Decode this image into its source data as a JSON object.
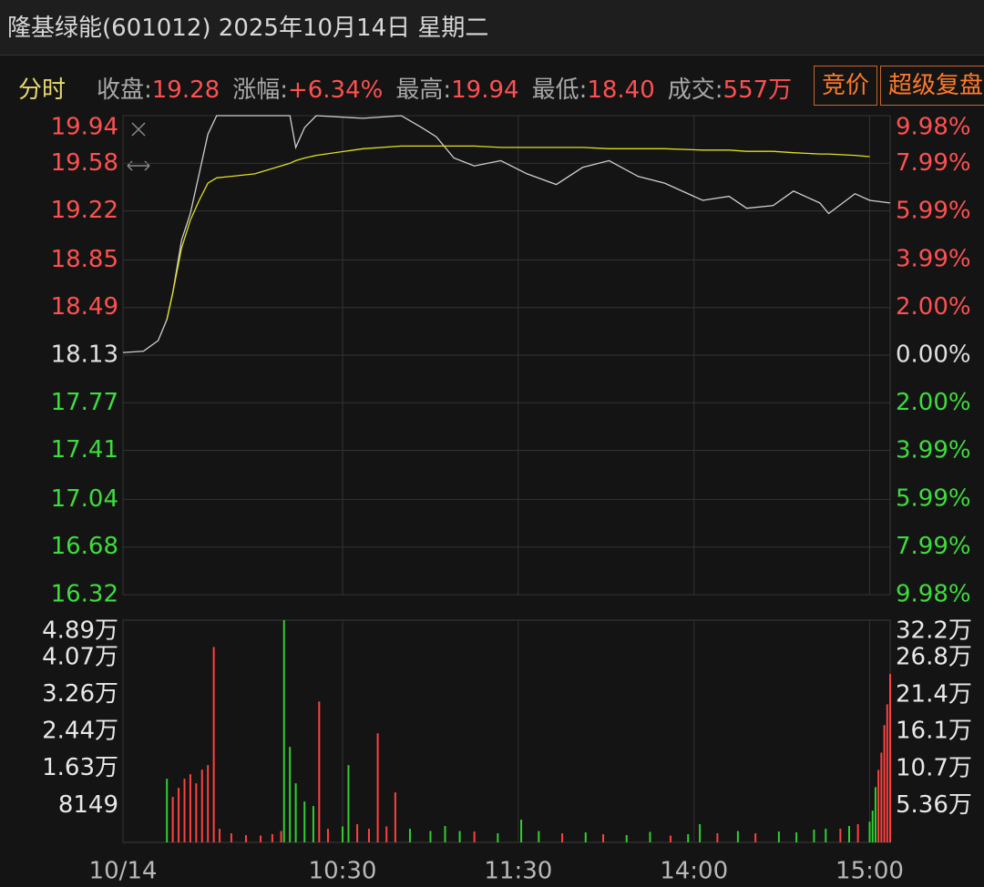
{
  "header": {
    "title": "隆基绿能(601012) 2025年10月14日 星期二"
  },
  "toolbar": {
    "mode": "分时",
    "stats": [
      {
        "label": "收盘:",
        "value": "19.28"
      },
      {
        "label": "涨幅:",
        "value": "+6.34%"
      },
      {
        "label": "最高:",
        "value": "19.94"
      },
      {
        "label": "最低:",
        "value": "18.40"
      },
      {
        "label": "成交:",
        "value": "557万"
      }
    ],
    "buttons": [
      "竞价",
      "超级复盘"
    ]
  },
  "chart_data": [
    {
      "type": "line",
      "xlim": [
        0,
        262
      ],
      "x": [
        0,
        7,
        12,
        15,
        17,
        20,
        23,
        26,
        29,
        32,
        45,
        57,
        59,
        62,
        66,
        82,
        95,
        102,
        107,
        113,
        120,
        129,
        138,
        148,
        157,
        166,
        176,
        185,
        198,
        207,
        213,
        222,
        229,
        238,
        241,
        250,
        255,
        262
      ],
      "ylim": [
        16.32,
        19.94
      ],
      "yticks": [
        19.94,
        19.58,
        19.22,
        18.85,
        18.49,
        18.13,
        17.77,
        17.41,
        17.04,
        16.68,
        16.32
      ],
      "y2lim": [
        -9.98,
        9.98
      ],
      "y2ticks": [
        {
          "value": 9.98,
          "label": "9.98%"
        },
        {
          "value": 7.99,
          "label": "7.99%"
        },
        {
          "value": 5.99,
          "label": "5.99%"
        },
        {
          "value": 3.99,
          "label": "3.99%"
        },
        {
          "value": 2.0,
          "label": "2.00%"
        },
        {
          "value": 0,
          "label": "0.00%"
        },
        {
          "value": -2.0,
          "label": "2.00%"
        },
        {
          "value": -3.99,
          "label": "3.99%"
        },
        {
          "value": -5.99,
          "label": "5.99%"
        },
        {
          "value": -7.99,
          "label": "7.99%"
        },
        {
          "value": -9.98,
          "label": "9.98%"
        }
      ],
      "grid": true,
      "tick_colors": {
        "up": "#ff5050",
        "flat": "#e0e0e0",
        "down": "#3ddc3d"
      },
      "series": [
        {
          "color": "#d0d0d0",
          "values": [
            18.15,
            18.16,
            18.24,
            18.4,
            18.6,
            19.0,
            19.2,
            19.5,
            19.8,
            19.94,
            19.94,
            19.94,
            19.7,
            19.85,
            19.94,
            19.92,
            19.94,
            19.85,
            19.78,
            19.62,
            19.56,
            19.6,
            19.5,
            19.42,
            19.55,
            19.6,
            19.48,
            19.43,
            19.3,
            19.33,
            19.24,
            19.26,
            19.37,
            19.28,
            19.2,
            19.35,
            19.3,
            19.28
          ]
        },
        {
          "color": "#e0e020",
          "values": [
            null,
            null,
            null,
            18.4,
            18.6,
            18.94,
            19.15,
            19.3,
            19.43,
            19.47,
            19.5,
            19.58,
            19.6,
            19.62,
            19.64,
            19.69,
            19.71,
            19.71,
            19.71,
            19.71,
            19.71,
            19.7,
            19.7,
            19.7,
            19.7,
            19.69,
            19.69,
            19.69,
            19.68,
            19.68,
            19.67,
            19.67,
            19.66,
            19.65,
            19.65,
            19.64,
            19.63,
            null
          ]
        }
      ]
    },
    {
      "type": "bar",
      "xlim": [
        0,
        262
      ],
      "xticks": [
        {
          "value": 0,
          "label": "10/14"
        },
        {
          "value": 75,
          "label": "10:30"
        },
        {
          "value": 135,
          "label": "11:30"
        },
        {
          "value": 195,
          "label": "14:00"
        },
        {
          "value": 255,
          "label": "15:00"
        }
      ],
      "ylim": [
        0,
        48900
      ],
      "yticks": [
        {
          "value": 48900,
          "label": "4.89万"
        },
        {
          "value": 40700,
          "label": "4.07万"
        },
        {
          "value": 32600,
          "label": "3.26万"
        },
        {
          "value": 24400,
          "label": "2.44万"
        },
        {
          "value": 16300,
          "label": "1.63万"
        },
        8149
      ],
      "y2lim": [
        0,
        322000
      ],
      "y2ticks": [
        {
          "value": 322000,
          "label": "32.2万"
        },
        {
          "value": 268000,
          "label": "26.8万"
        },
        {
          "value": 214000,
          "label": "21.4万"
        },
        {
          "value": 161000,
          "label": "16.1万"
        },
        {
          "value": 107000,
          "label": "10.7万"
        },
        {
          "value": 53600,
          "label": "5.36万"
        }
      ],
      "series": [
        {
          "x": [
            15,
            17,
            19,
            21,
            23,
            25,
            27,
            29,
            31,
            33,
            37,
            42,
            47,
            51,
            54,
            55,
            57,
            59,
            62,
            65,
            67,
            70,
            75,
            77,
            80,
            84,
            87,
            90,
            93,
            98,
            105,
            110,
            115,
            120,
            128,
            136,
            142,
            150,
            158,
            164,
            172,
            180,
            187,
            193,
            197,
            203,
            210,
            216,
            224,
            230,
            236,
            240,
            245,
            248,
            251
          ],
          "values": [
            14000,
            10000,
            12000,
            14000,
            15000,
            13000,
            16000,
            17000,
            43000,
            3000,
            2000,
            1600,
            1500,
            1800,
            2500,
            48900,
            21000,
            13000,
            9000,
            8000,
            31000,
            3000,
            3500,
            17000,
            4000,
            3000,
            24000,
            3500,
            11000,
            3000,
            2500,
            3600,
            2500,
            2400,
            2000,
            5000,
            2500,
            2000,
            2200,
            1800,
            1600,
            2300,
            1500,
            1800,
            4000,
            2000,
            2500,
            2000,
            2400,
            2200,
            2800,
            3000,
            3000,
            3600,
            4000
          ],
          "colors": [
            "#2fd02f",
            "#ff4040",
            "#ff4040",
            "#ff4040",
            "#ff4040",
            "#ff4040",
            "#ff4040",
            "#ff4040",
            "#ff4040",
            "#ff4040",
            "#ff4040",
            "#ff4040",
            "#ff4040",
            "#ff4040",
            "#ff4040",
            "#2fd02f",
            "#2fd02f",
            "#2fd02f",
            "#2fd02f",
            "#2fd02f",
            "#ff4040",
            "#ff4040",
            "#2fd02f",
            "#2fd02f",
            "#ff4040",
            "#ff4040",
            "#ff4040",
            "#ff4040",
            "#ff4040",
            "#2fd02f",
            "#2fd02f",
            "#2fd02f",
            "#2fd02f",
            "#ff4040",
            "#2fd02f",
            "#2fd02f",
            "#2fd02f",
            "#ff4040",
            "#2fd02f",
            "#ff4040",
            "#2fd02f",
            "#2fd02f",
            "#ff4040",
            "#2fd02f",
            "#2fd02f",
            "#ff4040",
            "#2fd02f",
            "#ff4040",
            "#2fd02f",
            "#2fd02f",
            "#2fd02f",
            "#2fd02f",
            "#ff4040",
            "#2fd02f",
            "#ff4040"
          ]
        },
        {
          "axis": "y2",
          "x": [
            255,
            256,
            257,
            258,
            259,
            260,
            261,
            262
          ],
          "values": [
            30000,
            46000,
            80000,
            105000,
            130000,
            170000,
            200000,
            244000
          ],
          "colors": [
            "#2fd02f",
            "#2fd02f",
            "#2fd02f",
            "#ff4040",
            "#ff4040",
            "#ff4040",
            "#ff4040",
            "#ff4040"
          ]
        }
      ]
    }
  ]
}
